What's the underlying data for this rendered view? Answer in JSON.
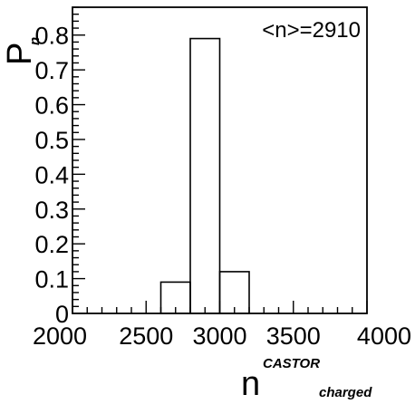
{
  "chart_data": {
    "type": "bar",
    "title": "",
    "ylabel_main": "P",
    "ylabel_sub": "n",
    "xlabel_main": "n",
    "xlabel_sup": "CASTOR",
    "xlabel_sub": "charged",
    "annotation": "<n>=2910",
    "xlim": [
      2000,
      4000
    ],
    "ylim": [
      0,
      0.88
    ],
    "x_ticks": [
      "2000",
      "2500",
      "3000",
      "3500",
      "4000"
    ],
    "x_tick_values": [
      2000,
      2500,
      3000,
      3500,
      4000
    ],
    "y_ticks": [
      "0",
      "0.1",
      "0.2",
      "0.3",
      "0.4",
      "0.5",
      "0.6",
      "0.7",
      "0.8"
    ],
    "y_tick_values": [
      0,
      0.1,
      0.2,
      0.3,
      0.4,
      0.5,
      0.6,
      0.7,
      0.8
    ],
    "bins": [
      {
        "x0": 2600,
        "x1": 2800,
        "value": 0.09
      },
      {
        "x0": 2800,
        "x1": 3000,
        "value": 0.79
      },
      {
        "x0": 3000,
        "x1": 3200,
        "value": 0.12
      }
    ],
    "grid": false,
    "legend": "none"
  }
}
